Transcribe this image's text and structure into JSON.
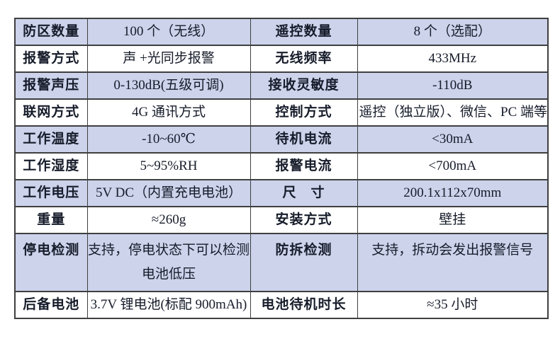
{
  "table": {
    "name": "product-spec-table",
    "rows": [
      {
        "c0": "防区数量",
        "c1": "100 个（无线）",
        "c2": "遥控数量",
        "c3": "8 个（选配）"
      },
      {
        "c0": "报警方式",
        "c1": "声 +光同步报警",
        "c2": "无线频率",
        "c3": "433MHz"
      },
      {
        "c0": "报警声压",
        "c1": "0-130dB(五级可调)",
        "c2": "接收灵敏度",
        "c3": "-110dB"
      },
      {
        "c0": "联网方式",
        "c1": "4G 通讯方式",
        "c2": "控制方式",
        "c3": "遥控（独立版）、微信、PC 端等"
      },
      {
        "c0": "工作温度",
        "c1": "-10~60℃",
        "c2": "待机电流",
        "c3": "<30mA"
      },
      {
        "c0": "工作湿度",
        "c1": "5~95%RH",
        "c2": "报警电流",
        "c3": "<700mA"
      },
      {
        "c0": "工作电压",
        "c1": "5V DC（内置充电电池）",
        "c2": "尺　寸",
        "c3": "200.1x112x70mm"
      },
      {
        "c0": "重量",
        "c1": "≈260g",
        "c2": "安装方式",
        "c3": "壁挂"
      },
      {
        "c0": "停电检测",
        "c1": "支持，停电状态下可以检测电池低压",
        "c2": "防拆检测",
        "c3": "支持，拆动会发出报警信号"
      },
      {
        "c0": "后备电池",
        "c1": "3.7V 锂电池(标配 900mAh)",
        "c2": "电池待机时长",
        "c3": "≈35 小时"
      }
    ]
  },
  "colors": {
    "row_shade": "#ccd3eb",
    "border": "#3f3f3f",
    "text": "#161c2a",
    "background": "#ffffff"
  }
}
